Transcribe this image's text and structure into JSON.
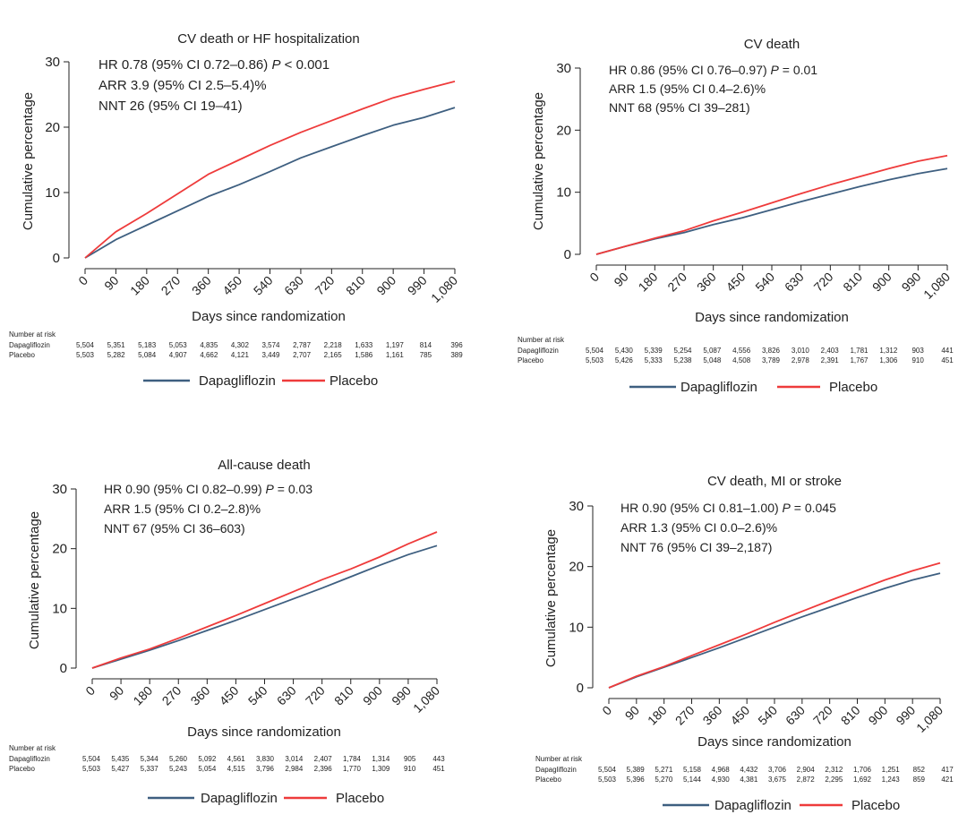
{
  "legend_labels": {
    "dapagliflozin": "Dapagliflozin",
    "placebo": "Placebo"
  },
  "colors": {
    "dapagliflozin": "#3e5f80",
    "placebo": "#ee3b3b",
    "axis": "#222222"
  },
  "risk_label": "Number at risk",
  "chart_data": [
    {
      "type": "line",
      "title": "CV death or HF hospitalization",
      "xlabel": "Days since randomization",
      "ylabel": "Cumulative percentage",
      "xlim": [
        0,
        1080
      ],
      "ylim": [
        0,
        30
      ],
      "x_ticks": [
        0,
        90,
        180,
        270,
        360,
        450,
        540,
        630,
        720,
        810,
        900,
        990,
        1080
      ],
      "x_tick_labels": [
        "0",
        "90",
        "180",
        "270",
        "360",
        "450",
        "540",
        "630",
        "720",
        "810",
        "900",
        "990",
        "1,080"
      ],
      "y_ticks": [
        0,
        10,
        20,
        30
      ],
      "stats": [
        "HR 0.78 (95% CI 0.72–0.86) ",
        "P",
        " < 0.001",
        "ARR 3.9 (95% CI 2.5–5.4)%",
        "NNT 26 (95% CI 19–41)"
      ],
      "series": [
        {
          "name": "Dapagliflozin",
          "x": [
            0,
            90,
            180,
            270,
            360,
            450,
            540,
            630,
            720,
            810,
            900,
            990,
            1080
          ],
          "values": [
            0,
            2.8,
            5.0,
            7.2,
            9.4,
            11.2,
            13.2,
            15.3,
            17.0,
            18.7,
            20.3,
            21.5,
            23.0
          ]
        },
        {
          "name": "Placebo",
          "x": [
            0,
            90,
            180,
            270,
            360,
            450,
            540,
            630,
            720,
            810,
            900,
            990,
            1080
          ],
          "values": [
            0,
            4.0,
            6.8,
            9.8,
            12.8,
            15.0,
            17.2,
            19.2,
            21.0,
            22.8,
            24.5,
            25.8,
            27.0
          ]
        }
      ],
      "at_risk": {
        "dapagliflozin": [
          "5,504",
          "5,351",
          "5,183",
          "5,053",
          "4,835",
          "4,302",
          "3,574",
          "2,787",
          "2,218",
          "1,633",
          "1,197",
          "814",
          "396"
        ],
        "placebo": [
          "5,503",
          "5,282",
          "5,084",
          "4,907",
          "4,662",
          "4,121",
          "3,449",
          "2,707",
          "2,165",
          "1,586",
          "1,161",
          "785",
          "389"
        ]
      }
    },
    {
      "type": "line",
      "title": "CV death",
      "xlabel": "Days since randomization",
      "ylabel": "Cumulative percentage",
      "xlim": [
        0,
        1080
      ],
      "ylim": [
        0,
        30
      ],
      "x_ticks": [
        0,
        90,
        180,
        270,
        360,
        450,
        540,
        630,
        720,
        810,
        900,
        990,
        1080
      ],
      "x_tick_labels": [
        "0",
        "90",
        "180",
        "270",
        "360",
        "450",
        "540",
        "630",
        "720",
        "810",
        "900",
        "990",
        "1,080"
      ],
      "y_ticks": [
        0,
        10,
        20,
        30
      ],
      "stats": [
        "HR 0.86 (95% CI 0.76–0.97) ",
        "P",
        " = 0.01",
        "ARR 1.5 (95% CI 0.4–2.6)%",
        "NNT 68 (95% CI 39–281)"
      ],
      "series": [
        {
          "name": "Dapagliflozin",
          "x": [
            0,
            90,
            180,
            270,
            360,
            450,
            540,
            630,
            720,
            810,
            900,
            990,
            1080
          ],
          "values": [
            0,
            1.3,
            2.5,
            3.5,
            4.8,
            5.9,
            7.2,
            8.5,
            9.7,
            10.9,
            12.0,
            13.0,
            13.8
          ]
        },
        {
          "name": "Placebo",
          "x": [
            0,
            90,
            180,
            270,
            360,
            450,
            540,
            630,
            720,
            810,
            900,
            990,
            1080
          ],
          "values": [
            0,
            1.3,
            2.6,
            3.8,
            5.4,
            6.8,
            8.3,
            9.8,
            11.2,
            12.5,
            13.8,
            15.0,
            15.9
          ]
        }
      ],
      "at_risk": {
        "dapagliflozin": [
          "5,504",
          "5,430",
          "5,339",
          "5,254",
          "5,087",
          "4,556",
          "3,826",
          "3,010",
          "2,403",
          "1,781",
          "1,312",
          "903",
          "441"
        ],
        "placebo": [
          "5,503",
          "5,426",
          "5,333",
          "5,238",
          "5,048",
          "4,508",
          "3,789",
          "2,978",
          "2,391",
          "1,767",
          "1,306",
          "910",
          "451"
        ]
      }
    },
    {
      "type": "line",
      "title": "All-cause death",
      "xlabel": "Days since randomization",
      "ylabel": "Cumulative percentage",
      "xlim": [
        0,
        1080
      ],
      "ylim": [
        0,
        30
      ],
      "x_ticks": [
        0,
        90,
        180,
        270,
        360,
        450,
        540,
        630,
        720,
        810,
        900,
        990,
        1080
      ],
      "x_tick_labels": [
        "0",
        "90",
        "180",
        "270",
        "360",
        "450",
        "540",
        "630",
        "720",
        "810",
        "900",
        "990",
        "1,080"
      ],
      "y_ticks": [
        0,
        10,
        20,
        30
      ],
      "stats": [
        "HR 0.90 (95% CI 0.82–0.99) ",
        "P",
        " = 0.03",
        "ARR 1.5 (95% CI 0.2–2.8)%",
        "NNT 67 (95% CI 36–603)"
      ],
      "series": [
        {
          "name": "Dapagliflozin",
          "x": [
            0,
            90,
            180,
            270,
            360,
            450,
            540,
            630,
            720,
            810,
            900,
            990,
            1080
          ],
          "values": [
            0,
            1.5,
            3.0,
            4.6,
            6.3,
            8.0,
            9.8,
            11.6,
            13.4,
            15.3,
            17.2,
            19.0,
            20.5
          ]
        },
        {
          "name": "Placebo",
          "x": [
            0,
            90,
            180,
            270,
            360,
            450,
            540,
            630,
            720,
            810,
            900,
            990,
            1080
          ],
          "values": [
            0,
            1.7,
            3.2,
            5.0,
            6.9,
            8.8,
            10.8,
            12.8,
            14.8,
            16.6,
            18.6,
            20.8,
            22.8
          ]
        }
      ],
      "at_risk": {
        "dapagliflozin": [
          "5,504",
          "5,435",
          "5,344",
          "5,260",
          "5,092",
          "4,561",
          "3,830",
          "3,014",
          "2,407",
          "1,784",
          "1,314",
          "905",
          "443"
        ],
        "placebo": [
          "5,503",
          "5,427",
          "5,337",
          "5,243",
          "5,054",
          "4,515",
          "3,796",
          "2,984",
          "2,396",
          "1,770",
          "1,309",
          "910",
          "451"
        ]
      }
    },
    {
      "type": "line",
      "title": "CV death, MI or stroke",
      "xlabel": "Days since randomization",
      "ylabel": "Cumulative percentage",
      "xlim": [
        0,
        1080
      ],
      "ylim": [
        0,
        30
      ],
      "x_ticks": [
        0,
        90,
        180,
        270,
        360,
        450,
        540,
        630,
        720,
        810,
        900,
        990,
        1080
      ],
      "x_tick_labels": [
        "0",
        "90",
        "180",
        "270",
        "360",
        "450",
        "540",
        "630",
        "720",
        "810",
        "900",
        "990",
        "1,080"
      ],
      "y_ticks": [
        0,
        10,
        20,
        30
      ],
      "stats": [
        "HR 0.90 (95% CI 0.81–1.00) ",
        "P",
        " = 0.045",
        "ARR 1.3 (95% CI 0.0–2.6)%",
        "NNT 76 (95% CI 39–2,187)"
      ],
      "series": [
        {
          "name": "Dapagliflozin",
          "x": [
            0,
            90,
            180,
            270,
            360,
            450,
            540,
            630,
            720,
            810,
            900,
            990,
            1080
          ],
          "values": [
            0,
            1.8,
            3.4,
            5.0,
            6.6,
            8.3,
            10.0,
            11.7,
            13.3,
            14.9,
            16.4,
            17.8,
            18.9
          ]
        },
        {
          "name": "Placebo",
          "x": [
            0,
            90,
            180,
            270,
            360,
            450,
            540,
            630,
            720,
            810,
            900,
            990,
            1080
          ],
          "values": [
            0,
            1.9,
            3.5,
            5.3,
            7.1,
            8.9,
            10.8,
            12.6,
            14.4,
            16.1,
            17.8,
            19.3,
            20.6
          ]
        }
      ],
      "at_risk": {
        "dapagliflozin": [
          "5,504",
          "5,389",
          "5,271",
          "5,158",
          "4,968",
          "4,432",
          "3,706",
          "2,904",
          "2,312",
          "1,706",
          "1,251",
          "852",
          "417"
        ],
        "placebo": [
          "5,503",
          "5,396",
          "5,270",
          "5,144",
          "4,930",
          "4,381",
          "3,675",
          "2,872",
          "2,295",
          "1,692",
          "1,243",
          "859",
          "421"
        ]
      }
    }
  ]
}
